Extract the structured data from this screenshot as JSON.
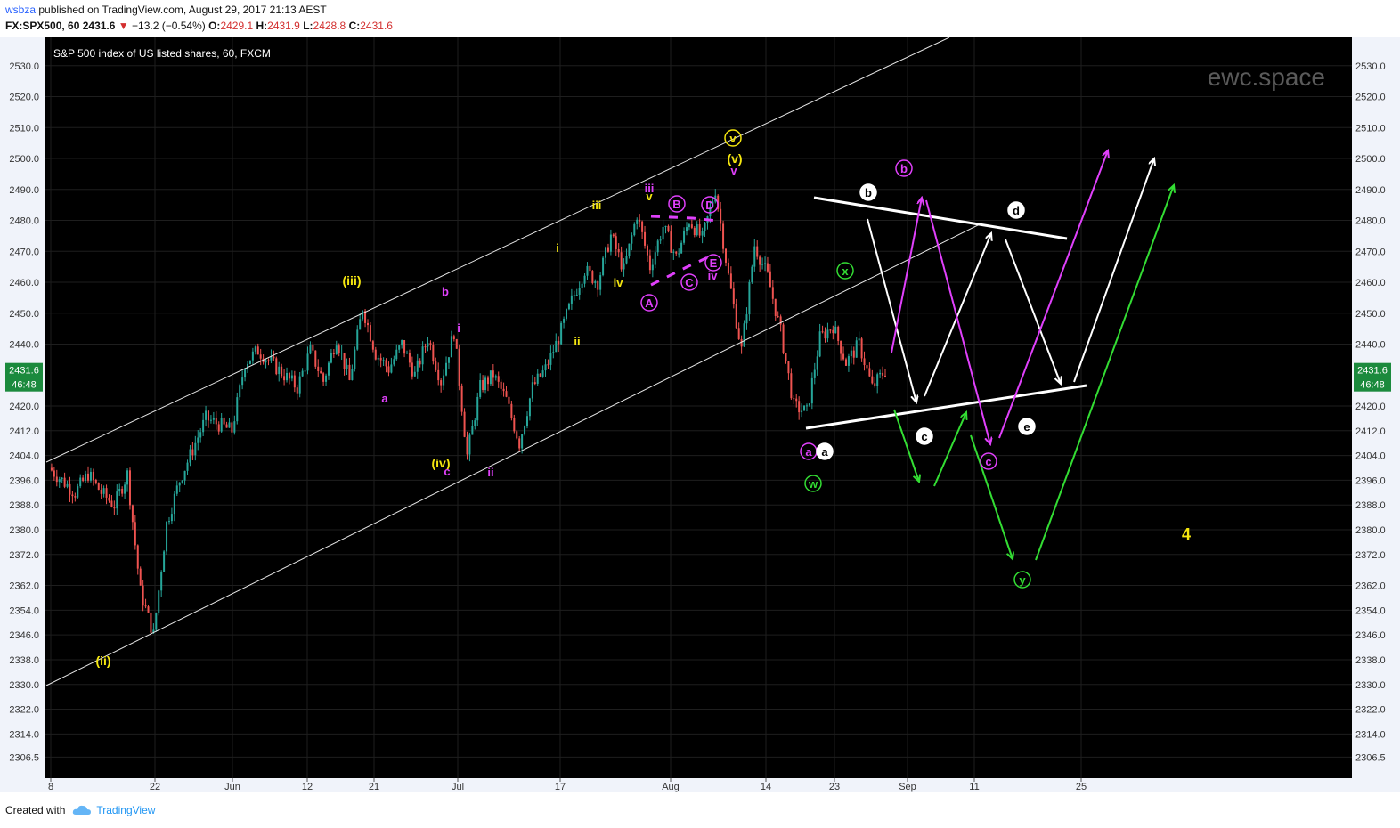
{
  "header": {
    "user": "wsbza",
    "published": "published on TradingView.com, August 29, 2017 21:13 AEST",
    "symbol": "FX:SPX500, 60",
    "last": "2431.6",
    "change": "−13.2 (−0.54%)",
    "o_label": "O:",
    "o": "2429.1",
    "h_label": "H:",
    "h": "2431.9",
    "l_label": "L:",
    "l": "2428.8",
    "c_label": "C:",
    "c": "2431.6"
  },
  "footer": {
    "created_with": "Created with",
    "brand": "TradingView"
  },
  "colors": {
    "background": "#000000",
    "grid": "#1e1e1e",
    "up": "#26a69a",
    "down": "#ef5350",
    "yellow": "#f5e70f",
    "magenta": "#e040fb",
    "white": "#ffffff",
    "green": "#33dd33"
  },
  "chart_data": {
    "type": "candlestick",
    "title": "S&P 500 index of US listed shares, 60, FXCM",
    "watermark": "ewc.space",
    "last_price_label": "2431.6",
    "countdown_label": "46:48",
    "y_ticks": [
      "2530.0",
      "2520.0",
      "2510.0",
      "2500.0",
      "2490.0",
      "2480.0",
      "2470.0",
      "2460.0",
      "2450.0",
      "2440.0",
      "2431.6",
      "2420.0",
      "2412.0",
      "2404.0",
      "2396.0",
      "2388.0",
      "2380.0",
      "2372.0",
      "2362.0",
      "2354.0",
      "2346.0",
      "2338.0",
      "2330.0",
      "2322.0",
      "2314.0",
      "2306.5"
    ],
    "x_ticks": [
      "8",
      "22",
      "Jun",
      "12",
      "21",
      "Jul",
      "17",
      "Aug",
      "14",
      "23",
      "Sep",
      "11",
      "25"
    ],
    "price_path": [
      [
        "8",
        2400
      ],
      [
        "8",
        2396
      ],
      [
        "8",
        2392
      ],
      [
        "8",
        2398
      ],
      [
        "8",
        2392
      ],
      [
        "8",
        2388
      ],
      [
        "22",
        2398
      ],
      [
        "22",
        2360
      ],
      [
        "22",
        2346
      ],
      [
        "22",
        2382
      ],
      [
        "22",
        2396
      ],
      [
        "22",
        2406
      ],
      [
        "22",
        2416
      ],
      [
        "22",
        2414
      ],
      [
        "Jun",
        2412
      ],
      [
        "Jun",
        2434
      ],
      [
        "Jun",
        2438
      ],
      [
        "Jun",
        2434
      ],
      [
        "12",
        2430
      ],
      [
        "12",
        2426
      ],
      [
        "12",
        2438
      ],
      [
        "12",
        2428
      ],
      [
        "12",
        2442
      ],
      [
        "12",
        2428
      ],
      [
        "21",
        2452
      ],
      [
        "21",
        2437
      ],
      [
        "21",
        2432
      ],
      [
        "21",
        2440
      ],
      [
        "21",
        2430
      ],
      [
        "21",
        2442
      ],
      [
        "21",
        2428
      ],
      [
        "Jul",
        2444
      ],
      [
        "Jul",
        2404
      ],
      [
        "Jul",
        2426
      ],
      [
        "Jul",
        2430
      ],
      [
        "Jul",
        2422
      ],
      [
        "Jul",
        2408
      ],
      [
        "17",
        2426
      ],
      [
        "17",
        2432
      ],
      [
        "17",
        2442
      ],
      [
        "17",
        2454
      ],
      [
        "17",
        2464
      ],
      [
        "17",
        2460
      ],
      [
        "17",
        2475
      ],
      [
        "17",
        2464
      ],
      [
        "Aug",
        2482
      ],
      [
        "Aug",
        2465
      ],
      [
        "Aug",
        2478
      ],
      [
        "Aug",
        2468
      ],
      [
        "Aug",
        2480
      ],
      [
        "Aug",
        2474
      ],
      [
        "Aug",
        2490
      ],
      [
        "Aug",
        2462
      ],
      [
        "14",
        2438
      ],
      [
        "14",
        2472
      ],
      [
        "14",
        2462
      ],
      [
        "14",
        2444
      ],
      [
        "23",
        2420
      ],
      [
        "23",
        2418
      ],
      [
        "23",
        2442
      ],
      [
        "23",
        2446
      ],
      [
        "23",
        2434
      ],
      [
        "23",
        2440
      ],
      [
        "23",
        2426
      ],
      [
        "23",
        2431.6
      ]
    ],
    "wave_labels": {
      "yellow": [
        "(ii)",
        "(iii)",
        "(iv)",
        "(v)",
        "v",
        "i",
        "ii",
        "iii",
        "iv",
        "v",
        "4"
      ],
      "magenta": [
        "i",
        "ii",
        "iii",
        "iv",
        "v",
        "a",
        "b",
        "c",
        "A",
        "B",
        "C",
        "D",
        "E",
        "a",
        "b",
        "c"
      ],
      "white": [
        "a",
        "b",
        "c",
        "d",
        "e"
      ],
      "green": [
        "w",
        "x",
        "y"
      ]
    }
  }
}
